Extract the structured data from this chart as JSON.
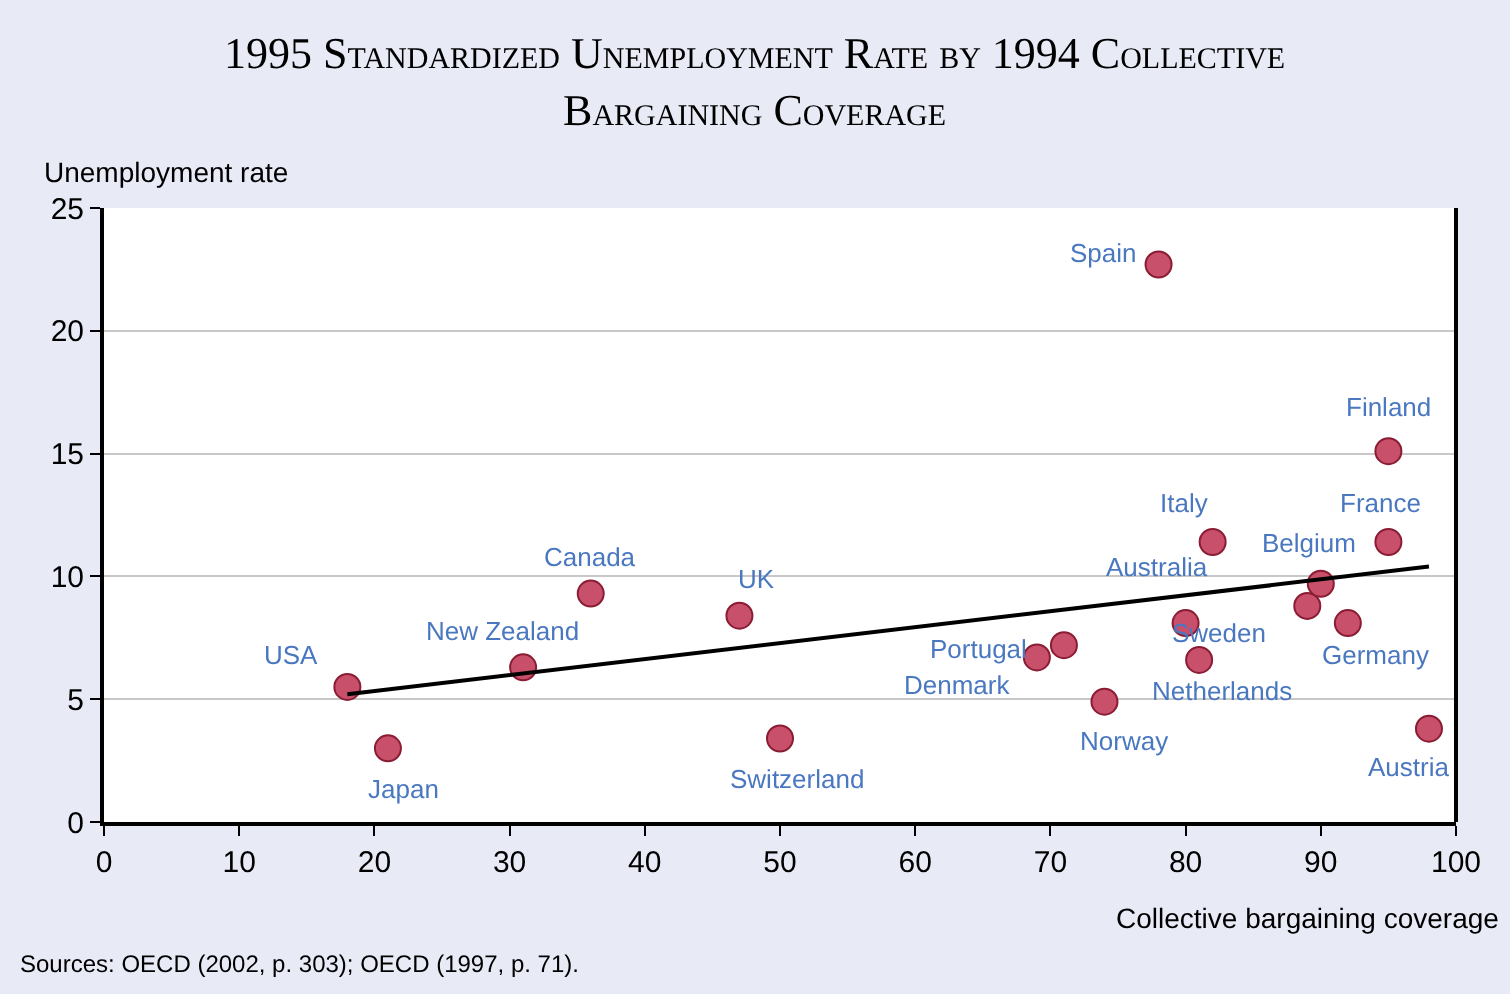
{
  "chart_data": {
    "type": "scatter",
    "title": "1995 Standardized Unemployment Rate by 1994 Collective Bargaining Coverage",
    "xlabel": "Collective bargaining coverage",
    "ylabel": "Unemployment rate",
    "series": [
      {
        "color": "#c8506a",
        "marker": "circle",
        "x": [
          18,
          21,
          31,
          36,
          47,
          50,
          69,
          71,
          74,
          78,
          80,
          81,
          82,
          89,
          90,
          92,
          95,
          95,
          98
        ],
        "values": [
          5.5,
          3.0,
          6.3,
          9.3,
          8.4,
          3.4,
          6.7,
          7.2,
          4.9,
          22.7,
          8.1,
          6.6,
          11.4,
          8.8,
          9.7,
          8.1,
          15.1,
          11.4,
          3.8
        ]
      },
      {
        "type": "line",
        "color": "#000000",
        "line_style": "solid",
        "marker": "none",
        "x": [
          18,
          98
        ],
        "values": [
          5.2,
          10.4
        ]
      }
    ],
    "xlim": [
      0,
      100
    ],
    "xticks": [
      0,
      10,
      20,
      30,
      40,
      50,
      60,
      70,
      80,
      90,
      100
    ],
    "ylim": [
      0,
      25
    ],
    "yticks": [
      0,
      5,
      10,
      15,
      20,
      25
    ],
    "grid": "y",
    "annotations": [
      {
        "text": "USA",
        "x": 18,
        "y": 5.5
      },
      {
        "text": "Japan",
        "x": 21,
        "y": 3.0
      },
      {
        "text": "New Zealand",
        "x": 31,
        "y": 6.3
      },
      {
        "text": "Canada",
        "x": 36,
        "y": 9.3
      },
      {
        "text": "UK",
        "x": 47,
        "y": 8.4
      },
      {
        "text": "Switzerland",
        "x": 50,
        "y": 3.4
      },
      {
        "text": "Denmark",
        "x": 69,
        "y": 6.7
      },
      {
        "text": "Portugal",
        "x": 71,
        "y": 7.2
      },
      {
        "text": "Norway",
        "x": 74,
        "y": 4.9
      },
      {
        "text": "Spain",
        "x": 78,
        "y": 22.7
      },
      {
        "text": "Australia",
        "x": 80,
        "y": 8.1
      },
      {
        "text": "Netherlands",
        "x": 81,
        "y": 6.6
      },
      {
        "text": "Italy",
        "x": 82,
        "y": 11.4
      },
      {
        "text": "Sweden",
        "x": 89,
        "y": 8.8
      },
      {
        "text": "Belgium",
        "x": 90,
        "y": 9.7
      },
      {
        "text": "Germany",
        "x": 92,
        "y": 8.1
      },
      {
        "text": "Finland",
        "x": 95,
        "y": 15.1
      },
      {
        "text": "France",
        "x": 95,
        "y": 11.4
      },
      {
        "text": "Austria",
        "x": 98,
        "y": 3.8
      },
      "Sources: OECD (2002, p. 303); OECD (1997, p. 71)."
    ]
  }
}
